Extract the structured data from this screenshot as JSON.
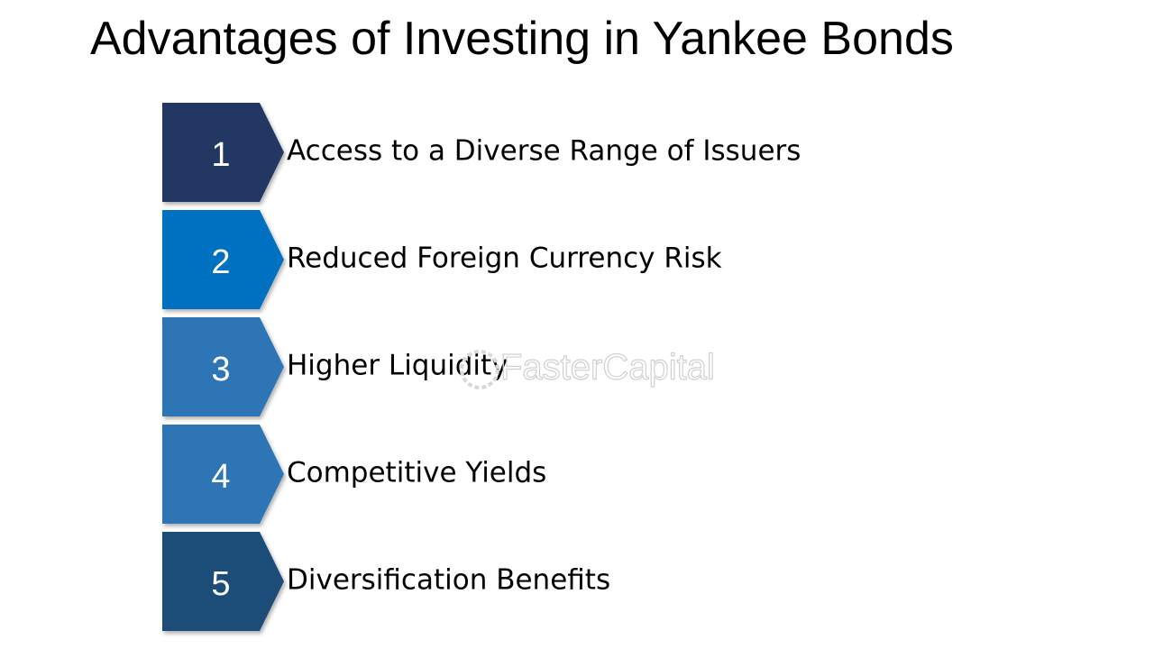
{
  "header": {
    "title": "Advantages of Investing in Yankee Bonds"
  },
  "watermark": "FasterCapital",
  "items": [
    {
      "number": "1",
      "label": "Access to a Diverse Range of Issuers",
      "color": "#203864"
    },
    {
      "number": "2",
      "label": "Reduced Foreign Currency Risk",
      "color": "#0070c0"
    },
    {
      "number": "3",
      "label": "Higher Liquidity",
      "color": "#2e75b6"
    },
    {
      "number": "4",
      "label": "Competitive Yields",
      "color": "#2e75b6"
    },
    {
      "number": "5",
      "label": "Diversification Benefits",
      "color": "#1f4e79"
    }
  ]
}
